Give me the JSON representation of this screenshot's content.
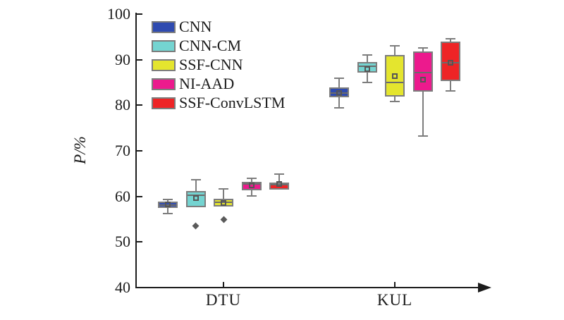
{
  "styles": {
    "background": "#ffffff",
    "axis_color": "#1c1c1c",
    "box_edge_color": "#7d7d7d",
    "median_color": "#6b6b6b",
    "mean_marker_color": "#555555",
    "outlier_color": "#5a5a5a"
  },
  "chart_data": {
    "type": "boxplot",
    "title": "",
    "xlabel": "",
    "ylabel": "P/%",
    "ylim": [
      40,
      100
    ],
    "yticks": [
      40,
      50,
      60,
      70,
      80,
      90,
      100
    ],
    "categories": [
      "DTU",
      "KUL"
    ],
    "grid": false,
    "legend_position": "top-left",
    "mean_marker": "open-square",
    "outlier_marker": "diamond",
    "series": [
      {
        "name": "CNN",
        "color": "#2f4bb0",
        "boxes": [
          {
            "group": "DTU",
            "whisker_low": 56.2,
            "q1": 57.4,
            "median": 58.1,
            "q3": 58.9,
            "whisker_high": 59.4,
            "mean": 58.3,
            "outliers": []
          },
          {
            "group": "KUL",
            "whisker_low": 79.4,
            "q1": 81.8,
            "median": 82.7,
            "q3": 83.9,
            "whisker_high": 86.0,
            "mean": 82.7,
            "outliers": []
          }
        ]
      },
      {
        "name": "CNN-CM",
        "color": "#74d4d1",
        "boxes": [
          {
            "group": "DTU",
            "whisker_low": 57.7,
            "q1": 57.7,
            "median": 60.2,
            "q3": 61.2,
            "whisker_high": 63.7,
            "mean": 59.6,
            "outliers": [
              53.5
            ]
          },
          {
            "group": "KUL",
            "whisker_low": 85.0,
            "q1": 87.2,
            "median": 88.6,
            "q3": 89.5,
            "whisker_high": 91.0,
            "mean": 87.9,
            "outliers": []
          }
        ]
      },
      {
        "name": "SSF-CNN",
        "color": "#e4e52e",
        "boxes": [
          {
            "group": "DTU",
            "whisker_low": 57.8,
            "q1": 57.8,
            "median": 58.7,
            "q3": 59.5,
            "whisker_high": 61.6,
            "mean": 58.6,
            "outliers": [
              55.0
            ]
          },
          {
            "group": "KUL",
            "whisker_low": 80.8,
            "q1": 81.9,
            "median": 85.0,
            "q3": 91.0,
            "whisker_high": 93.0,
            "mean": 86.4,
            "outliers": []
          }
        ]
      },
      {
        "name": "NI-AAD",
        "color": "#ec1a8d",
        "boxes": [
          {
            "group": "DTU",
            "whisker_low": 60.1,
            "q1": 61.3,
            "median": 62.7,
            "q3": 63.2,
            "whisker_high": 64.0,
            "mean": 62.4,
            "outliers": []
          },
          {
            "group": "KUL",
            "whisker_low": 73.2,
            "q1": 83.0,
            "median": 87.2,
            "q3": 91.8,
            "whisker_high": 92.6,
            "mean": 85.6,
            "outliers": []
          }
        ]
      },
      {
        "name": "SSF-ConvLSTM",
        "color": "#ee2426",
        "boxes": [
          {
            "group": "DTU",
            "whisker_low": 61.5,
            "q1": 61.5,
            "median": 62.6,
            "q3": 63.0,
            "whisker_high": 64.9,
            "mean": 62.7,
            "outliers": []
          },
          {
            "group": "KUL",
            "whisker_low": 83.1,
            "q1": 85.3,
            "median": 89.3,
            "q3": 94.0,
            "whisker_high": 94.6,
            "mean": 89.3,
            "outliers": []
          }
        ]
      }
    ]
  }
}
